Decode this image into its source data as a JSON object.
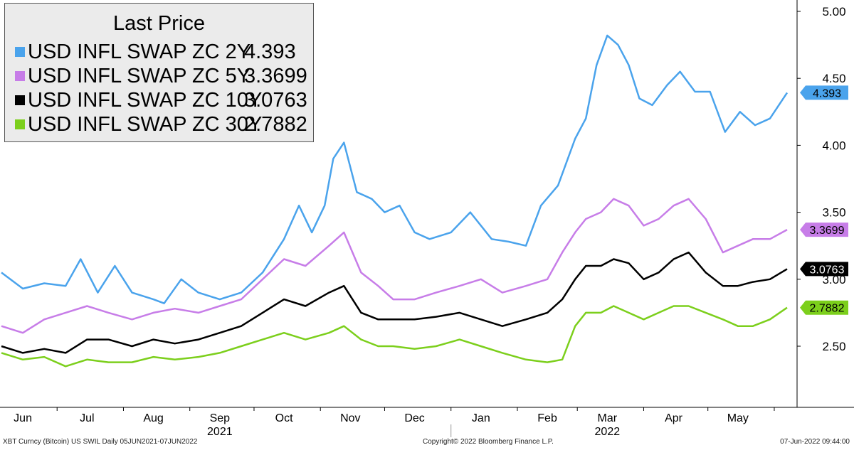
{
  "legend": {
    "title": "Last Price",
    "items": [
      {
        "name": "USD INFL SWAP ZC 2Y",
        "value": "4.393",
        "color": "#4aa3ec"
      },
      {
        "name": "USD INFL SWAP ZC 5Y",
        "value": "3.3699",
        "color": "#c77de8"
      },
      {
        "name": "USD INFL SWAP ZC 10Y",
        "value": "3.0763",
        "color": "#000000"
      },
      {
        "name": "USD INFL SWAP ZC 30Y",
        "value": "2.7882",
        "color": "#7ccf1c"
      }
    ]
  },
  "footer": {
    "left": "XBT Curncy (Bitcoin) US SWIL  Daily 05JUN2021-07JUN2022",
    "center": "Copyright© 2022 Bloomberg Finance L.P.",
    "right": "07-Jun-2022 09:44:00"
  },
  "chart_data": {
    "type": "line",
    "ylim": [
      2.2,
      5.15
    ],
    "y_ticks": [
      "5.00",
      "4.50",
      "4.00",
      "3.50",
      "3.00",
      "2.50"
    ],
    "x_range": [
      "2021-06-05",
      "2022-06-07"
    ],
    "month_labels": [
      "Jun",
      "Jul",
      "Aug",
      "Sep",
      "Oct",
      "Nov",
      "Dec",
      "Jan",
      "Feb",
      "Mar",
      "Apr",
      "May"
    ],
    "month_dates": [
      "2021-06-15",
      "2021-07-15",
      "2021-08-15",
      "2021-09-15",
      "2021-10-15",
      "2021-11-15",
      "2021-12-15",
      "2022-01-15",
      "2022-02-15",
      "2022-03-15",
      "2022-04-15",
      "2022-05-15"
    ],
    "year_labels": [
      {
        "label": "2021",
        "date": "2021-09-15"
      },
      {
        "label": "2022",
        "date": "2022-03-15"
      }
    ],
    "grid": false,
    "legend_position": "top-left",
    "series": [
      {
        "name": "USD INFL SWAP ZC 2Y",
        "last_label": "4.393",
        "color": "#4aa3ec",
        "x": [
          "2021-06-05",
          "2021-06-15",
          "2021-06-25",
          "2021-07-05",
          "2021-07-12",
          "2021-07-20",
          "2021-07-28",
          "2021-08-05",
          "2021-08-15",
          "2021-08-20",
          "2021-08-28",
          "2021-09-05",
          "2021-09-15",
          "2021-09-25",
          "2021-10-05",
          "2021-10-15",
          "2021-10-22",
          "2021-10-28",
          "2021-11-03",
          "2021-11-07",
          "2021-11-12",
          "2021-11-18",
          "2021-11-25",
          "2021-12-01",
          "2021-12-08",
          "2021-12-15",
          "2021-12-22",
          "2022-01-01",
          "2022-01-10",
          "2022-01-20",
          "2022-01-28",
          "2022-02-05",
          "2022-02-12",
          "2022-02-20",
          "2022-02-28",
          "2022-03-05",
          "2022-03-10",
          "2022-03-15",
          "2022-03-20",
          "2022-03-25",
          "2022-03-30",
          "2022-04-05",
          "2022-04-12",
          "2022-04-18",
          "2022-04-25",
          "2022-05-02",
          "2022-05-09",
          "2022-05-16",
          "2022-05-23",
          "2022-05-30",
          "2022-06-07"
        ],
        "y": [
          3.05,
          2.93,
          2.97,
          2.95,
          3.15,
          2.9,
          3.1,
          2.9,
          2.85,
          2.82,
          3.0,
          2.9,
          2.85,
          2.9,
          3.05,
          3.3,
          3.55,
          3.35,
          3.55,
          3.9,
          4.02,
          3.65,
          3.6,
          3.5,
          3.55,
          3.35,
          3.3,
          3.35,
          3.5,
          3.3,
          3.28,
          3.25,
          3.55,
          3.7,
          4.05,
          4.2,
          4.6,
          4.82,
          4.75,
          4.6,
          4.35,
          4.3,
          4.45,
          4.55,
          4.4,
          4.4,
          4.1,
          4.25,
          4.15,
          4.2,
          4.393
        ]
      },
      {
        "name": "USD INFL SWAP ZC 5Y",
        "last_label": "3.3699",
        "color": "#c77de8",
        "x": [
          "2021-06-05",
          "2021-06-15",
          "2021-06-25",
          "2021-07-05",
          "2021-07-15",
          "2021-07-25",
          "2021-08-05",
          "2021-08-15",
          "2021-08-25",
          "2021-09-05",
          "2021-09-15",
          "2021-09-25",
          "2021-10-05",
          "2021-10-15",
          "2021-10-25",
          "2021-11-05",
          "2021-11-12",
          "2021-11-20",
          "2021-11-28",
          "2021-12-05",
          "2021-12-15",
          "2021-12-25",
          "2022-01-05",
          "2022-01-15",
          "2022-01-25",
          "2022-02-05",
          "2022-02-15",
          "2022-02-22",
          "2022-02-28",
          "2022-03-05",
          "2022-03-12",
          "2022-03-18",
          "2022-03-25",
          "2022-04-01",
          "2022-04-08",
          "2022-04-15",
          "2022-04-22",
          "2022-04-30",
          "2022-05-08",
          "2022-05-15",
          "2022-05-22",
          "2022-05-30",
          "2022-06-07"
        ],
        "y": [
          2.65,
          2.6,
          2.7,
          2.75,
          2.8,
          2.75,
          2.7,
          2.75,
          2.78,
          2.75,
          2.8,
          2.85,
          3.0,
          3.15,
          3.1,
          3.25,
          3.35,
          3.05,
          2.95,
          2.85,
          2.85,
          2.9,
          2.95,
          3.0,
          2.9,
          2.95,
          3.0,
          3.2,
          3.35,
          3.45,
          3.5,
          3.6,
          3.55,
          3.4,
          3.45,
          3.55,
          3.6,
          3.45,
          3.2,
          3.25,
          3.3,
          3.3,
          3.3699
        ]
      },
      {
        "name": "USD INFL SWAP ZC 10Y",
        "last_label": "3.0763",
        "color": "#000000",
        "x": [
          "2021-06-05",
          "2021-06-15",
          "2021-06-25",
          "2021-07-05",
          "2021-07-15",
          "2021-07-25",
          "2021-08-05",
          "2021-08-15",
          "2021-08-25",
          "2021-09-05",
          "2021-09-15",
          "2021-09-25",
          "2021-10-05",
          "2021-10-15",
          "2021-10-25",
          "2021-11-05",
          "2021-11-12",
          "2021-11-20",
          "2021-11-28",
          "2021-12-05",
          "2021-12-15",
          "2021-12-25",
          "2022-01-05",
          "2022-01-15",
          "2022-01-25",
          "2022-02-05",
          "2022-02-15",
          "2022-02-22",
          "2022-02-28",
          "2022-03-05",
          "2022-03-12",
          "2022-03-18",
          "2022-03-25",
          "2022-04-01",
          "2022-04-08",
          "2022-04-15",
          "2022-04-22",
          "2022-04-30",
          "2022-05-08",
          "2022-05-15",
          "2022-05-22",
          "2022-05-30",
          "2022-06-07"
        ],
        "y": [
          2.5,
          2.45,
          2.48,
          2.45,
          2.55,
          2.55,
          2.5,
          2.55,
          2.52,
          2.55,
          2.6,
          2.65,
          2.75,
          2.85,
          2.8,
          2.9,
          2.95,
          2.75,
          2.7,
          2.7,
          2.7,
          2.72,
          2.75,
          2.7,
          2.65,
          2.7,
          2.75,
          2.85,
          3.0,
          3.1,
          3.1,
          3.15,
          3.12,
          3.0,
          3.05,
          3.15,
          3.2,
          3.05,
          2.95,
          2.95,
          2.98,
          3.0,
          3.0763
        ]
      },
      {
        "name": "USD INFL SWAP ZC 30Y",
        "last_label": "2.7882",
        "color": "#7ccf1c",
        "x": [
          "2021-06-05",
          "2021-06-15",
          "2021-06-25",
          "2021-07-05",
          "2021-07-15",
          "2021-07-25",
          "2021-08-05",
          "2021-08-15",
          "2021-08-25",
          "2021-09-05",
          "2021-09-15",
          "2021-09-25",
          "2021-10-05",
          "2021-10-15",
          "2021-10-25",
          "2021-11-05",
          "2021-11-12",
          "2021-11-20",
          "2021-11-28",
          "2021-12-05",
          "2021-12-15",
          "2021-12-25",
          "2022-01-05",
          "2022-01-15",
          "2022-01-25",
          "2022-02-05",
          "2022-02-15",
          "2022-02-22",
          "2022-02-28",
          "2022-03-05",
          "2022-03-12",
          "2022-03-18",
          "2022-03-25",
          "2022-04-01",
          "2022-04-08",
          "2022-04-15",
          "2022-04-22",
          "2022-04-30",
          "2022-05-08",
          "2022-05-15",
          "2022-05-22",
          "2022-05-30",
          "2022-06-07"
        ],
        "y": [
          2.45,
          2.4,
          2.42,
          2.35,
          2.4,
          2.38,
          2.38,
          2.42,
          2.4,
          2.42,
          2.45,
          2.5,
          2.55,
          2.6,
          2.55,
          2.6,
          2.65,
          2.55,
          2.5,
          2.5,
          2.48,
          2.5,
          2.55,
          2.5,
          2.45,
          2.4,
          2.38,
          2.4,
          2.65,
          2.75,
          2.75,
          2.8,
          2.75,
          2.7,
          2.75,
          2.8,
          2.8,
          2.75,
          2.7,
          2.65,
          2.65,
          2.7,
          2.7882
        ]
      }
    ]
  }
}
